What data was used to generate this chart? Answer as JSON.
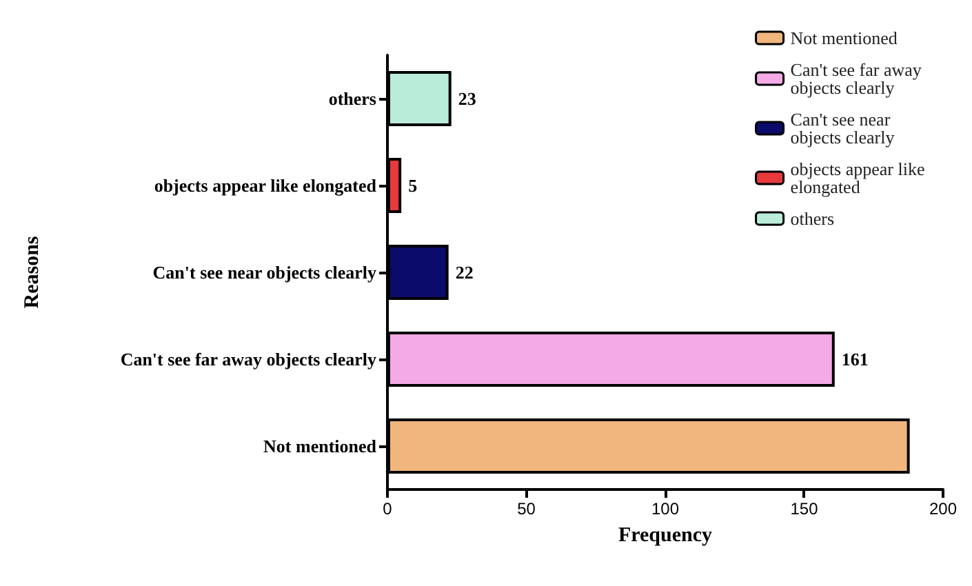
{
  "chart_data": {
    "type": "bar",
    "orientation": "horizontal",
    "xlabel": "Frequency",
    "ylabel": "Reasons",
    "categories": [
      "others",
      "objects appear like elongated",
      "Can't see near objects clearly",
      "Can't see far away objects clearly",
      "Not mentioned"
    ],
    "series": [
      {
        "name": "others",
        "color": "#b9ecd9",
        "values": [
          23,
          null,
          null,
          null,
          null
        ],
        "value_labels": [
          "23",
          null,
          null,
          null,
          null
        ]
      },
      {
        "name": "objects appear like elongated",
        "color": "#e8393b",
        "values": [
          null,
          5,
          null,
          null,
          null
        ],
        "value_labels": [
          null,
          "5",
          null,
          null,
          null
        ]
      },
      {
        "name": "Can't see near objects clearly",
        "color": "#0b0b6b",
        "values": [
          null,
          null,
          22,
          null,
          null
        ],
        "value_labels": [
          null,
          null,
          "22",
          null,
          null
        ]
      },
      {
        "name": "Can't see far away objects clearly",
        "color": "#f4aae6",
        "values": [
          null,
          null,
          null,
          161,
          null
        ],
        "value_labels": [
          null,
          null,
          null,
          "161",
          null
        ]
      },
      {
        "name": "Not mentioned",
        "color": "#f0b67d",
        "values": [
          null,
          null,
          null,
          null,
          188
        ],
        "value_labels": [
          null,
          null,
          null,
          null,
          null
        ]
      }
    ],
    "xlim": [
      0,
      200
    ],
    "xticks": [
      0,
      50,
      100,
      150,
      200
    ],
    "grid": false,
    "legend": "top right"
  }
}
